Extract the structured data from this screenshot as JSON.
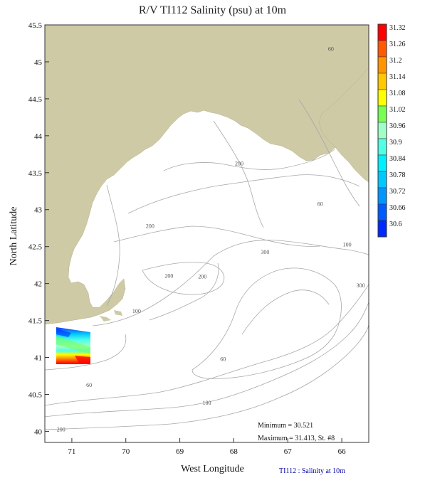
{
  "title": "R/V TI112 Salinity (psu) at 10m",
  "x_axis_label": "West Longitude",
  "y_axis_label": "North Latitude",
  "footnote": "TI112 : Salinity at 10m",
  "stats": {
    "minimum": "Minimum = 30.521",
    "maximum": "Maximum = 31.413, St. #8"
  },
  "colors": {
    "land": "#cdcaa5",
    "water": "#ffffff",
    "contour": "#a8a8a8",
    "frame": "#333333"
  },
  "chart_data": {
    "type": "heatmap",
    "title": "R/V TI112 Salinity (psu) at 10m",
    "xlabel": "West Longitude",
    "ylabel": "North Latitude",
    "xlim": [
      71.5,
      65.5
    ],
    "ylim": [
      39.85,
      45.5
    ],
    "x_ticks": [
      "71",
      "70",
      "69",
      "68",
      "67",
      "66"
    ],
    "y_ticks": [
      "40",
      "40.5",
      "41",
      "41.5",
      "42",
      "42.5",
      "43",
      "43.5",
      "44",
      "44.5",
      "45",
      "45.5"
    ],
    "colorbar": {
      "levels": [
        "31.32",
        "31.26",
        "31.2",
        "31.14",
        "31.08",
        "31.02",
        "30.96",
        "30.9",
        "30.84",
        "30.78",
        "30.72",
        "30.66",
        "30.6"
      ],
      "colors": [
        "#ff0000",
        "#ff5a00",
        "#ff9600",
        "#ffc800",
        "#ffff00",
        "#78ff50",
        "#a0ffc8",
        "#50ffe6",
        "#00f0ff",
        "#00c8ff",
        "#0096ff",
        "#005aff",
        "#0028ff"
      ]
    },
    "contour_labels": [
      {
        "text": "60",
        "lon": 66.2,
        "lat": 45.15
      },
      {
        "text": "200",
        "lon": 67.9,
        "lat": 43.6
      },
      {
        "text": "60",
        "lon": 66.4,
        "lat": 43.05
      },
      {
        "text": "200",
        "lon": 69.55,
        "lat": 42.75
      },
      {
        "text": "300",
        "lon": 67.42,
        "lat": 42.4
      },
      {
        "text": "100",
        "lon": 65.9,
        "lat": 42.5
      },
      {
        "text": "200",
        "lon": 69.2,
        "lat": 42.08
      },
      {
        "text": "200",
        "lon": 68.58,
        "lat": 42.07
      },
      {
        "text": "300",
        "lon": 65.65,
        "lat": 41.95
      },
      {
        "text": "100",
        "lon": 69.8,
        "lat": 41.6
      },
      {
        "text": "60",
        "lon": 68.2,
        "lat": 40.95
      },
      {
        "text": "60",
        "lon": 70.68,
        "lat": 40.6
      },
      {
        "text": "100",
        "lon": 68.5,
        "lat": 40.36
      },
      {
        "text": "200",
        "lon": 71.2,
        "lat": 40.0
      }
    ]
  }
}
